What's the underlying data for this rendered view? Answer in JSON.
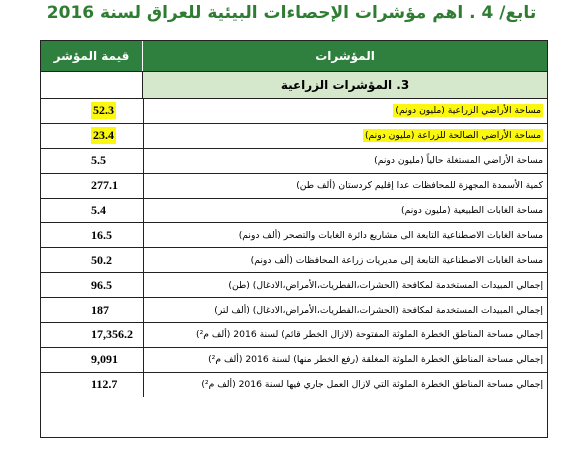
{
  "page": {
    "title": "تابع/ 4 . اهم مؤشرات الإحصاءات البيئية للعراق لسنة 2016"
  },
  "table": {
    "headers": {
      "indicator": "المؤشرات",
      "value": "قيمة المؤشر"
    },
    "section": "3. المؤشرات الزراعية",
    "rows": [
      {
        "label": "مساحة الأراضي الزراعية (مليون دونم)",
        "value": "52.3",
        "highlight": true
      },
      {
        "label": "مساحة الأراضي الصالحة للزراعة (مليون دونم)",
        "value": "23.4",
        "highlight": true
      },
      {
        "label": "مساحة الأراضي المستغلة حالياً (مليون دونم)",
        "value": "5.5",
        "highlight": false
      },
      {
        "label": "كمية الأسمدة المجهزة للمحافظات عدا إقليم كردستان (ألف طن)",
        "value": "277.1",
        "highlight": false
      },
      {
        "label": "مساحة الغابات الطبيعية (مليون دونم)",
        "value": "5.4",
        "highlight": false
      },
      {
        "label": "مساحة الغابات الاصطناعية التابعة الى مشاريع دائرة الغابات والتصحر (ألف دونم)",
        "value": "16.5",
        "highlight": false
      },
      {
        "label": "مساحة الغابات الاصطناعية التابعة إلى مديريات زراعة المحافظات (ألف دونم)",
        "value": "50.2",
        "highlight": false
      },
      {
        "label": "إجمالي المبيدات المستخدمة لمكافحة (الحشرات،الفطريات،الأمراض،الادغال) (طن)",
        "value": "96.5",
        "highlight": false
      },
      {
        "label": "إجمالي المبيدات المستخدمة لمكافحة (الحشرات،الفطريات،الأمراض،الادغال) (ألف لتر)",
        "value": "187",
        "highlight": false
      },
      {
        "label": "إجمالي مساحة المناطق الخطرة الملوثة المفتوحة (لازال الخطر قائم) لسنة 2016 (ألف م²)",
        "value": "17,356.2",
        "highlight": false
      },
      {
        "label": "إجمالي مساحة المناطق الخطرة الملوثة المغلقة (رفع الخطر منها) لسنة 2016 (ألف م²)",
        "value": "9,091",
        "highlight": false
      },
      {
        "label": "إجمالي مساحة المناطق الخطرة الملوثة التي لازال العمل جاري فيها لسنة 2016 (ألف م²)",
        "value": "112.7",
        "highlight": false
      }
    ]
  },
  "colors": {
    "title": "#2e7d32",
    "header_bg": "#2f7f3e",
    "section_bg": "#d5e8cc",
    "highlight": "#fcf70f"
  }
}
